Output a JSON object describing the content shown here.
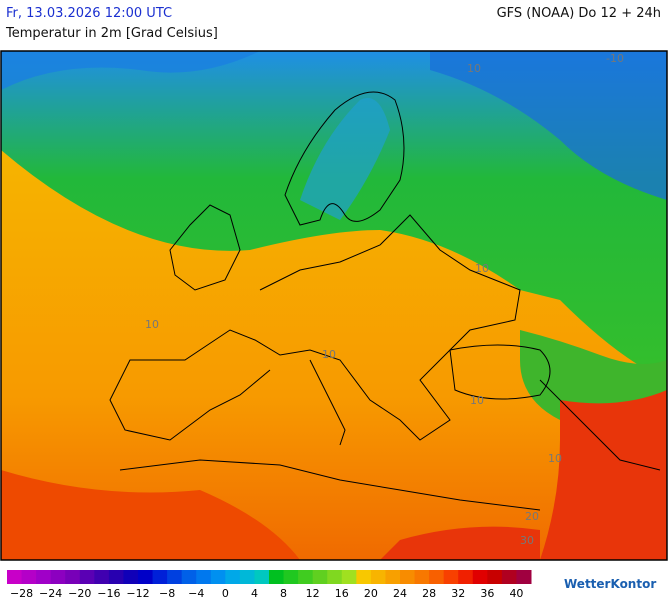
{
  "header": {
    "date": "Fr, 13.03.2026 12:00 UTC",
    "model": "GFS (NOAA) Do 12 + 24h",
    "parameter": "Temperatur in 2m [Grad Celsius]"
  },
  "map": {
    "contour_labels": [
      "10",
      "-10",
      "10",
      "10",
      "10",
      "10",
      "10",
      "20",
      "30"
    ]
  },
  "legend": {
    "ticks": [
      "−28",
      "−24",
      "−20",
      "−16",
      "−12",
      "−8",
      "−4",
      "0",
      "4",
      "8",
      "12",
      "16",
      "20",
      "24",
      "28",
      "32",
      "36",
      "40"
    ]
  },
  "logo": "WetterKontor"
}
